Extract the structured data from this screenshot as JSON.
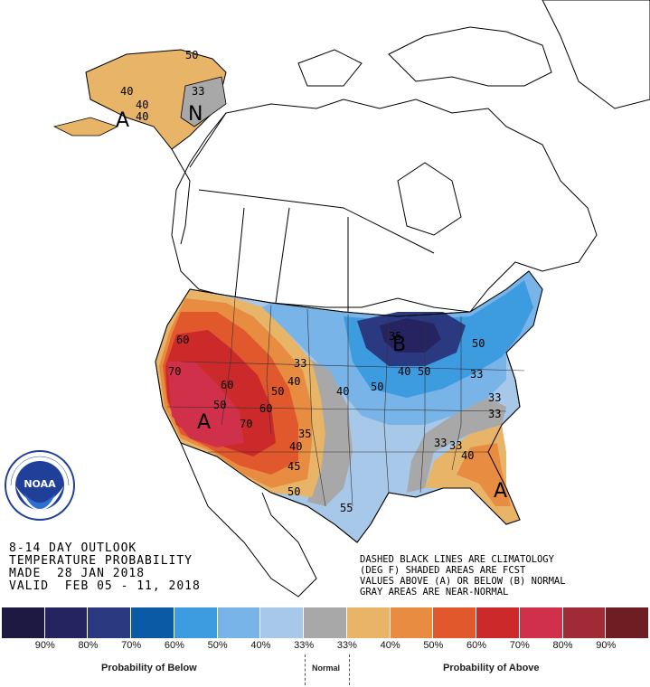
{
  "map": {
    "region_labels": [
      "A",
      "N",
      "A",
      "B",
      "A"
    ],
    "contour_labels": [
      "40",
      "40",
      "50",
      "33",
      "40",
      "60",
      "70",
      "50",
      "40",
      "40",
      "50",
      "60",
      "33",
      "50",
      "70",
      "40",
      "35",
      "45",
      "50",
      "33",
      "40",
      "55",
      "33",
      "40",
      "60",
      "33",
      "33",
      "33",
      "50",
      "35",
      "50"
    ],
    "contour_label_gray": "33"
  },
  "title": {
    "line1": "8-14 DAY OUTLOOK",
    "line2": "TEMPERATURE PROBABILITY",
    "line3": "MADE  28 JAN 2018",
    "line4": "VALID  FEB 05 - 11, 2018"
  },
  "notes": {
    "line1": "DASHED BLACK LINES ARE CLIMATOLOGY",
    "line2": "(DEG F) SHADED AREAS ARE FCST",
    "line3": "VALUES ABOVE (A) OR BELOW (B) NORMAL",
    "line4": "GRAY AREAS ARE NEAR-NORMAL"
  },
  "logo": {
    "text": "NOAA",
    "ring_text": "NATIONAL OCEANIC AND ATMOSPHERIC ADMINISTRATION · U.S. DEPARTMENT OF COMMERCE"
  },
  "legend": {
    "colors": [
      "#1d1942",
      "#262460",
      "#2b3a80",
      "#0b5aa5",
      "#3d9be0",
      "#78b4e8",
      "#a7c8e8",
      "#a8a8a8",
      "#e8b468",
      "#e88c42",
      "#e0582c",
      "#cc2a2a",
      "#d0304a",
      "#a02a36",
      "#6e1e22"
    ],
    "labels": [
      "90%",
      "80%",
      "70%",
      "60%",
      "50%",
      "40%",
      "33%",
      "33%",
      "40%",
      "50%",
      "60%",
      "70%",
      "80%",
      "90%"
    ],
    "below_caption": "Probability of Below",
    "normal_caption": "Normal",
    "above_caption": "Probability of Above"
  },
  "colors": {
    "above_33": "#e8b468",
    "above_40": "#e88c42",
    "above_50": "#e0582c",
    "above_60": "#cc2a2a",
    "above_70": "#d0304a",
    "below_33": "#a7c8e8",
    "below_40": "#78b4e8",
    "below_50": "#3d9be0",
    "below_60": "#0b5aa5",
    "below_70": "#2b3a80",
    "below_80": "#262460",
    "normal": "#a8a8a8",
    "noaa_blue": "#1f3f99"
  }
}
